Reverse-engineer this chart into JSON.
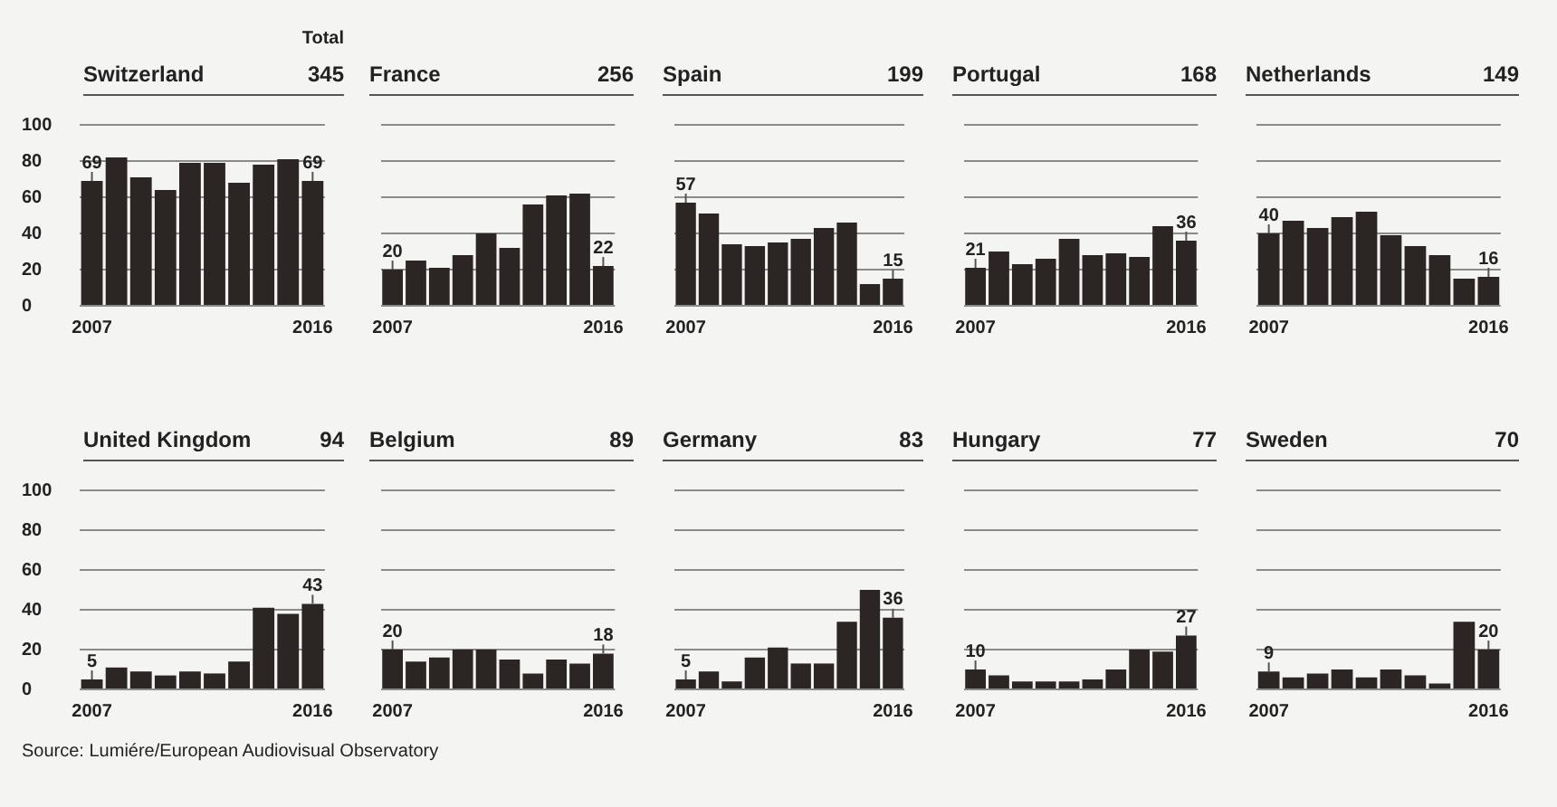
{
  "chart_data": [
    {
      "type": "bar",
      "title": "Switzerland",
      "subtitle": "345",
      "annotations": [
        "Total"
      ],
      "categories": [
        "2007",
        null,
        null,
        null,
        null,
        null,
        null,
        null,
        null,
        "2016"
      ],
      "color": "#2b2624",
      "ylim": [
        0,
        100
      ],
      "yticks": [
        0,
        20,
        40,
        60,
        80,
        100
      ],
      "grid": "y",
      "values": [
        69,
        82,
        71,
        64,
        79,
        79,
        68,
        78,
        81,
        69
      ],
      "value_labels": [
        "69",
        null,
        null,
        null,
        null,
        null,
        null,
        null,
        null,
        "69"
      ]
    },
    {
      "type": "bar",
      "title": "France",
      "subtitle": "256",
      "categories": [
        "2007",
        null,
        null,
        null,
        null,
        null,
        null,
        null,
        null,
        "2016"
      ],
      "color": "#2b2624",
      "ylim": [
        0,
        100
      ],
      "yticks": [
        0,
        20,
        40,
        60,
        80,
        100
      ],
      "grid": "y",
      "tick_labels": "x",
      "values": [
        20,
        25,
        21,
        28,
        40,
        32,
        56,
        61,
        62,
        22
      ],
      "value_labels": [
        "20",
        null,
        null,
        null,
        null,
        null,
        null,
        null,
        null,
        "22"
      ]
    },
    {
      "type": "bar",
      "title": "Spain",
      "subtitle": "199",
      "categories": [
        "2007",
        null,
        null,
        null,
        null,
        null,
        null,
        null,
        null,
        "2016"
      ],
      "color": "#2b2624",
      "ylim": [
        0,
        100
      ],
      "yticks": [
        0,
        20,
        40,
        60,
        80,
        100
      ],
      "grid": "y",
      "tick_labels": "x",
      "values": [
        57,
        51,
        34,
        33,
        35,
        37,
        43,
        46,
        12,
        15
      ],
      "value_labels": [
        "57",
        null,
        null,
        null,
        null,
        null,
        null,
        null,
        null,
        "15"
      ]
    },
    {
      "type": "bar",
      "title": "Portugal",
      "subtitle": "168",
      "categories": [
        "2007",
        null,
        null,
        null,
        null,
        null,
        null,
        null,
        null,
        "2016"
      ],
      "color": "#2b2624",
      "ylim": [
        0,
        100
      ],
      "yticks": [
        0,
        20,
        40,
        60,
        80,
        100
      ],
      "grid": "y",
      "tick_labels": "x",
      "values": [
        21,
        30,
        23,
        26,
        37,
        28,
        29,
        27,
        44,
        36
      ],
      "value_labels": [
        "21",
        null,
        null,
        null,
        null,
        null,
        null,
        null,
        null,
        "36"
      ]
    },
    {
      "type": "bar",
      "title": "Netherlands",
      "subtitle": "149",
      "categories": [
        "2007",
        null,
        null,
        null,
        null,
        null,
        null,
        null,
        null,
        "2016"
      ],
      "color": "#2b2624",
      "ylim": [
        0,
        100
      ],
      "yticks": [
        0,
        20,
        40,
        60,
        80,
        100
      ],
      "grid": "y",
      "tick_labels": "x",
      "values": [
        40,
        47,
        43,
        49,
        52,
        39,
        33,
        28,
        15,
        16
      ],
      "value_labels": [
        "40",
        null,
        null,
        null,
        null,
        null,
        null,
        null,
        null,
        "16"
      ]
    },
    {
      "type": "bar",
      "title": "United Kingdom",
      "subtitle": "94",
      "annotations": [
        "Source: Lumiére/European Audiovisual Observatory"
      ],
      "categories": [
        "2007",
        null,
        null,
        null,
        null,
        null,
        null,
        null,
        null,
        "2016"
      ],
      "color": "#2b2624",
      "ylim": [
        0,
        100
      ],
      "yticks": [
        0,
        20,
        40,
        60,
        80,
        100
      ],
      "grid": "y",
      "values": [
        5,
        11,
        9,
        7,
        9,
        8,
        14,
        41,
        38,
        43
      ],
      "value_labels": [
        "5",
        null,
        null,
        null,
        null,
        null,
        null,
        null,
        null,
        "43"
      ]
    },
    {
      "type": "bar",
      "title": "Belgium",
      "subtitle": "89",
      "categories": [
        "2007",
        null,
        null,
        null,
        null,
        null,
        null,
        null,
        null,
        "2016"
      ],
      "color": "#2b2624",
      "ylim": [
        0,
        100
      ],
      "yticks": [
        0,
        20,
        40,
        60,
        80,
        100
      ],
      "grid": "y",
      "tick_labels": "x",
      "values": [
        20,
        14,
        16,
        20,
        20,
        15,
        8,
        15,
        13,
        18
      ],
      "value_labels": [
        "20",
        null,
        null,
        null,
        null,
        null,
        null,
        null,
        null,
        "18"
      ]
    },
    {
      "type": "bar",
      "title": "Germany",
      "subtitle": "83",
      "categories": [
        "2007",
        null,
        null,
        null,
        null,
        null,
        null,
        null,
        null,
        "2016"
      ],
      "color": "#2b2624",
      "ylim": [
        0,
        100
      ],
      "yticks": [
        0,
        20,
        40,
        60,
        80,
        100
      ],
      "grid": "y",
      "tick_labels": "x",
      "values": [
        5,
        9,
        4,
        16,
        21,
        13,
        13,
        34,
        50,
        36
      ],
      "value_labels": [
        "5",
        null,
        null,
        null,
        null,
        null,
        null,
        null,
        null,
        "36"
      ]
    },
    {
      "type": "bar",
      "title": "Hungary",
      "subtitle": "77",
      "categories": [
        "2007",
        null,
        null,
        null,
        null,
        null,
        null,
        null,
        null,
        "2016"
      ],
      "color": "#2b2624",
      "ylim": [
        0,
        100
      ],
      "yticks": [
        0,
        20,
        40,
        60,
        80,
        100
      ],
      "grid": "y",
      "tick_labels": "x",
      "values": [
        10,
        7,
        4,
        4,
        4,
        5,
        10,
        20,
        19,
        27
      ],
      "value_labels": [
        "10",
        null,
        null,
        null,
        null,
        null,
        null,
        null,
        null,
        "27"
      ]
    },
    {
      "type": "bar",
      "title": "Sweden",
      "subtitle": "70",
      "categories": [
        "2007",
        null,
        null,
        null,
        null,
        null,
        null,
        null,
        null,
        "2016"
      ],
      "color": "#2b2624",
      "ylim": [
        0,
        100
      ],
      "yticks": [
        0,
        20,
        40,
        60,
        80,
        100
      ],
      "grid": "y",
      "tick_labels": "x",
      "values": [
        9,
        6,
        8,
        10,
        6,
        10,
        7,
        3,
        34,
        20
      ],
      "value_labels": [
        "9",
        null,
        null,
        null,
        null,
        null,
        null,
        null,
        null,
        "20"
      ]
    }
  ]
}
